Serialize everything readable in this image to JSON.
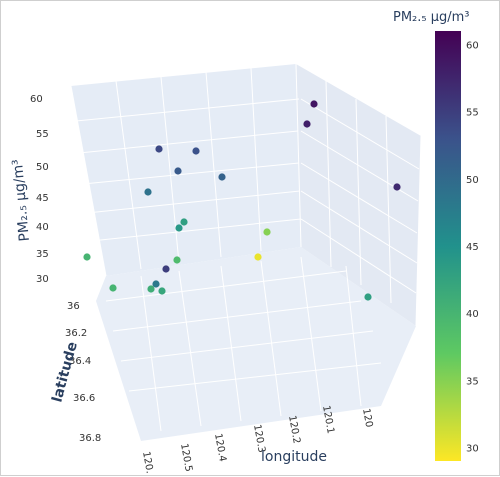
{
  "chart_data": {
    "type": "scatter3d",
    "colorscale": "viridis_r",
    "axes": {
      "x": {
        "label": "longitude",
        "ticks": [
          "120",
          "120.1",
          "120.2",
          "120.3",
          "120.4",
          "120.5",
          "120."
        ]
      },
      "y": {
        "label": "latitude",
        "ticks": [
          "36",
          "36.2",
          "36.4",
          "36.6",
          "36.8"
        ]
      },
      "z": {
        "label": "PM₂.₅ μg/m³",
        "ticks": [
          "30",
          "35",
          "40",
          "45",
          "50",
          "55",
          "60"
        ]
      }
    },
    "colorbar": {
      "title": "PM₂.₅ μg/m³",
      "range": [
        29,
        61
      ],
      "ticks": [
        "30",
        "35",
        "40",
        "45",
        "50",
        "55",
        "60"
      ]
    },
    "points": [
      {
        "pm25": 59
      },
      {
        "pm25": 58
      },
      {
        "pm25": 57
      },
      {
        "pm25": 54
      },
      {
        "pm25": 53
      },
      {
        "pm25": 52
      },
      {
        "pm25": 51
      },
      {
        "pm25": 49
      },
      {
        "pm25": 43
      },
      {
        "pm25": 44
      },
      {
        "pm25": 30
      },
      {
        "pm25": 35
      },
      {
        "pm25": 39
      },
      {
        "pm25": 40
      },
      {
        "pm25": 55
      },
      {
        "pm25": 48
      },
      {
        "pm25": 40
      },
      {
        "pm25": 41
      },
      {
        "pm25": 42
      },
      {
        "pm25": 43
      }
    ]
  }
}
